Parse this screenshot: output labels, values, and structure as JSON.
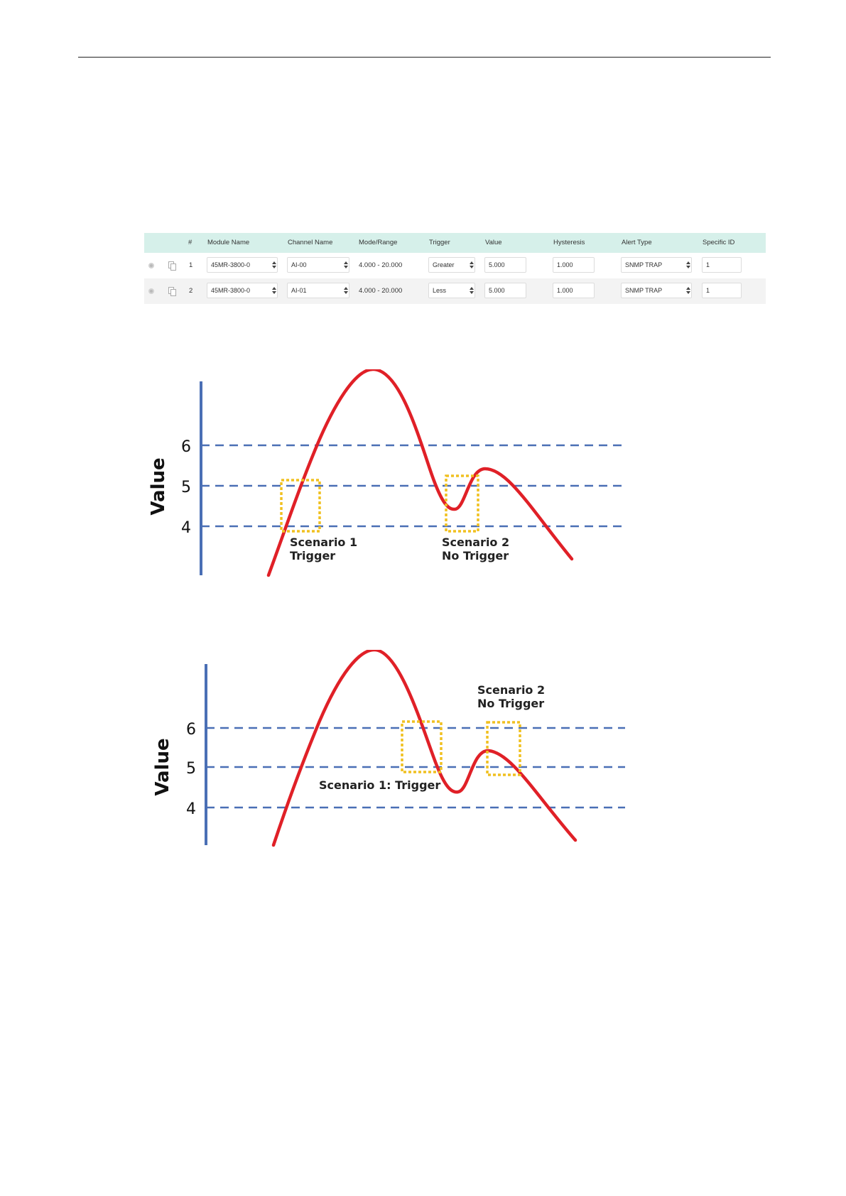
{
  "table": {
    "headers": {
      "num": "#",
      "module": "Module Name",
      "channel": "Channel Name",
      "mode": "Mode/Range",
      "trigger": "Trigger",
      "value": "Value",
      "hysteresis": "Hysteresis",
      "alert": "Alert Type",
      "specific": "Specific ID"
    },
    "rows": [
      {
        "num": "1",
        "module": "45MR-3800-0",
        "channel": "AI-00",
        "mode": "4.000 - 20.000",
        "trigger": "Greater",
        "value": "5.000",
        "hysteresis": "1.000",
        "alert": "SNMP TRAP",
        "specific": "1"
      },
      {
        "num": "2",
        "module": "45MR-3800-0",
        "channel": "AI-01",
        "mode": "4.000 - 20.000",
        "trigger": "Less",
        "value": "5.000",
        "hysteresis": "1.000",
        "alert": "SNMP TRAP",
        "specific": "1"
      }
    ]
  },
  "colors": {
    "header_bg": "#d6f0ea",
    "axis": "#4a6fb5",
    "reference_line": "#4a6fb5",
    "curve": "#e02027",
    "scenario_box": "#f0c020"
  },
  "diagram1": {
    "ylabel": "Value",
    "ticks": [
      "6",
      "5",
      "4"
    ],
    "scenario1": [
      "Scenario 1",
      "Trigger"
    ],
    "scenario2": [
      "Scenario 2",
      "No Trigger"
    ]
  },
  "diagram2": {
    "ylabel": "Value",
    "ticks": [
      "6",
      "5",
      "4"
    ],
    "scenario1": "Scenario 1: Trigger",
    "scenario2": [
      "Scenario 2",
      "No Trigger"
    ]
  }
}
